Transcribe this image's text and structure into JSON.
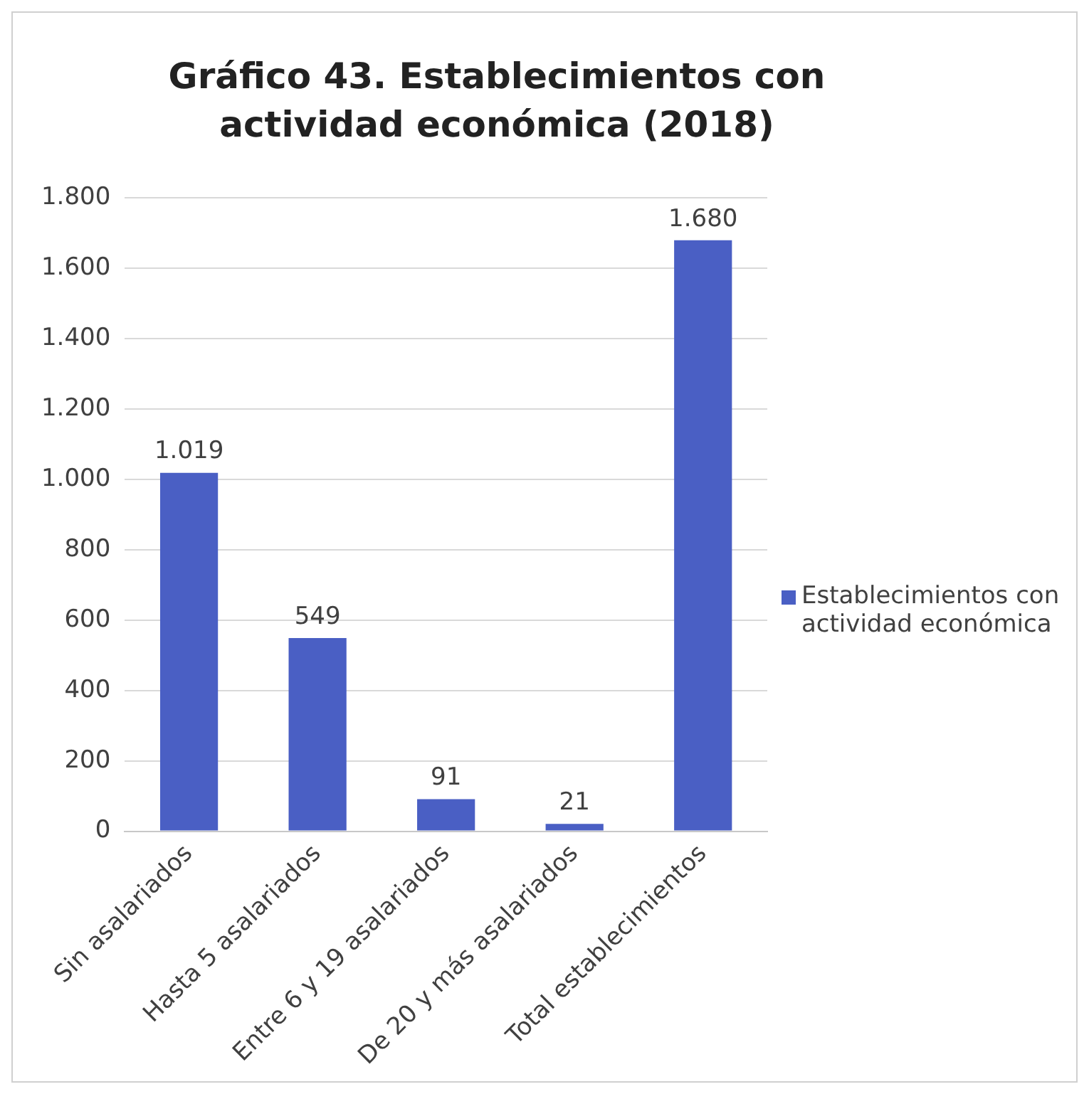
{
  "chart_data": {
    "type": "bar",
    "title": "Gráfico 43. Establecimientos con actividad económica (2018)",
    "categories": [
      "Sin asalariados",
      "Hasta 5 asalariados",
      "Entre 6 y 19 asalariados",
      "De 20 y más asalariados",
      "Total establecimientos"
    ],
    "series": [
      {
        "name": "Establecimientos con actividad económica",
        "color": "#4a5fc4",
        "values": [
          1019,
          549,
          91,
          21,
          1680
        ],
        "value_labels": [
          "1.019",
          "549",
          "91",
          "21",
          "1.680"
        ]
      }
    ],
    "ylim": [
      0,
      1800
    ],
    "yticks": [
      {
        "value": 0,
        "label": "0"
      },
      {
        "value": 200,
        "label": "200"
      },
      {
        "value": 400,
        "label": "400"
      },
      {
        "value": 600,
        "label": "600"
      },
      {
        "value": 800,
        "label": "800"
      },
      {
        "value": 1000,
        "label": "1.000"
      },
      {
        "value": 1200,
        "label": "1.200"
      },
      {
        "value": 1400,
        "label": "1.400"
      },
      {
        "value": 1600,
        "label": "1.600"
      },
      {
        "value": 1800,
        "label": "1.800"
      }
    ],
    "grid": "y",
    "legend": "right"
  }
}
